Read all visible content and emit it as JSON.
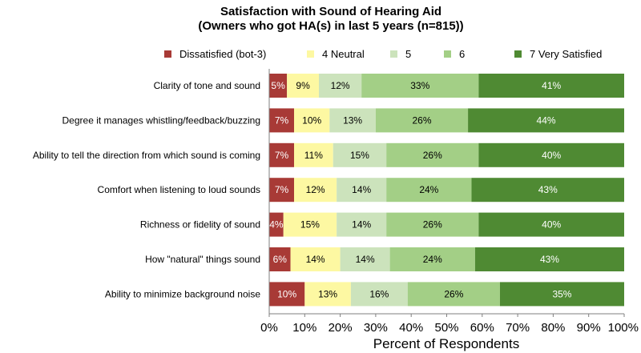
{
  "chart_data": {
    "type": "bar",
    "orientation": "horizontal",
    "stacked": true,
    "title": "Satisfaction with Sound of Hearing Aid",
    "subtitle": "(Owners who got HA(s) in last 5 years (n=815))",
    "xlabel": "Percent of Respondents",
    "ylabel": "",
    "xlim": [
      0,
      100
    ],
    "x_ticks": [
      "0%",
      "10%",
      "20%",
      "30%",
      "40%",
      "50%",
      "60%",
      "70%",
      "80%",
      "90%",
      "100%"
    ],
    "legend_position": "top",
    "categories": [
      "Clarity of tone and sound",
      "Degree it manages whistling/feedback/buzzing",
      "Ability to tell the direction from which sound is coming",
      "Comfort when listening to loud sounds",
      "Richness or fidelity of sound",
      "How \"natural\" things sound",
      "Ability to minimize background noise"
    ],
    "series": [
      {
        "name": "Dissatisfied (bot-3)",
        "color": "#a83a36",
        "text_color": "#ffffff",
        "values": [
          5,
          7,
          7,
          7,
          4,
          6,
          10
        ],
        "labels": [
          "5%",
          "7%",
          "7%",
          "7%",
          "4%",
          "6%",
          "10%"
        ]
      },
      {
        "name": "4 Neutral",
        "color": "#fdf8a2",
        "text_color": "#000000",
        "values": [
          9,
          10,
          11,
          12,
          15,
          14,
          13
        ],
        "labels": [
          "9%",
          "10%",
          "11%",
          "12%",
          "15%",
          "14%",
          "13%"
        ]
      },
      {
        "name": "5",
        "color": "#cce3bc",
        "text_color": "#000000",
        "values": [
          12,
          13,
          15,
          14,
          14,
          14,
          16
        ],
        "labels": [
          "12%",
          "13%",
          "15%",
          "14%",
          "14%",
          "14%",
          "16%"
        ]
      },
      {
        "name": "6",
        "color": "#a3cf86",
        "text_color": "#000000",
        "values": [
          33,
          26,
          26,
          24,
          26,
          24,
          26
        ],
        "labels": [
          "33%",
          "26%",
          "26%",
          "24%",
          "26%",
          "24%",
          "26%"
        ]
      },
      {
        "name": "7 Very Satisfied",
        "color": "#4f8a33",
        "text_color": "#ffffff",
        "values": [
          41,
          44,
          40,
          43,
          40,
          43,
          35
        ],
        "labels": [
          "41%",
          "44%",
          "40%",
          "43%",
          "40%",
          "43%",
          "35%"
        ]
      }
    ]
  }
}
